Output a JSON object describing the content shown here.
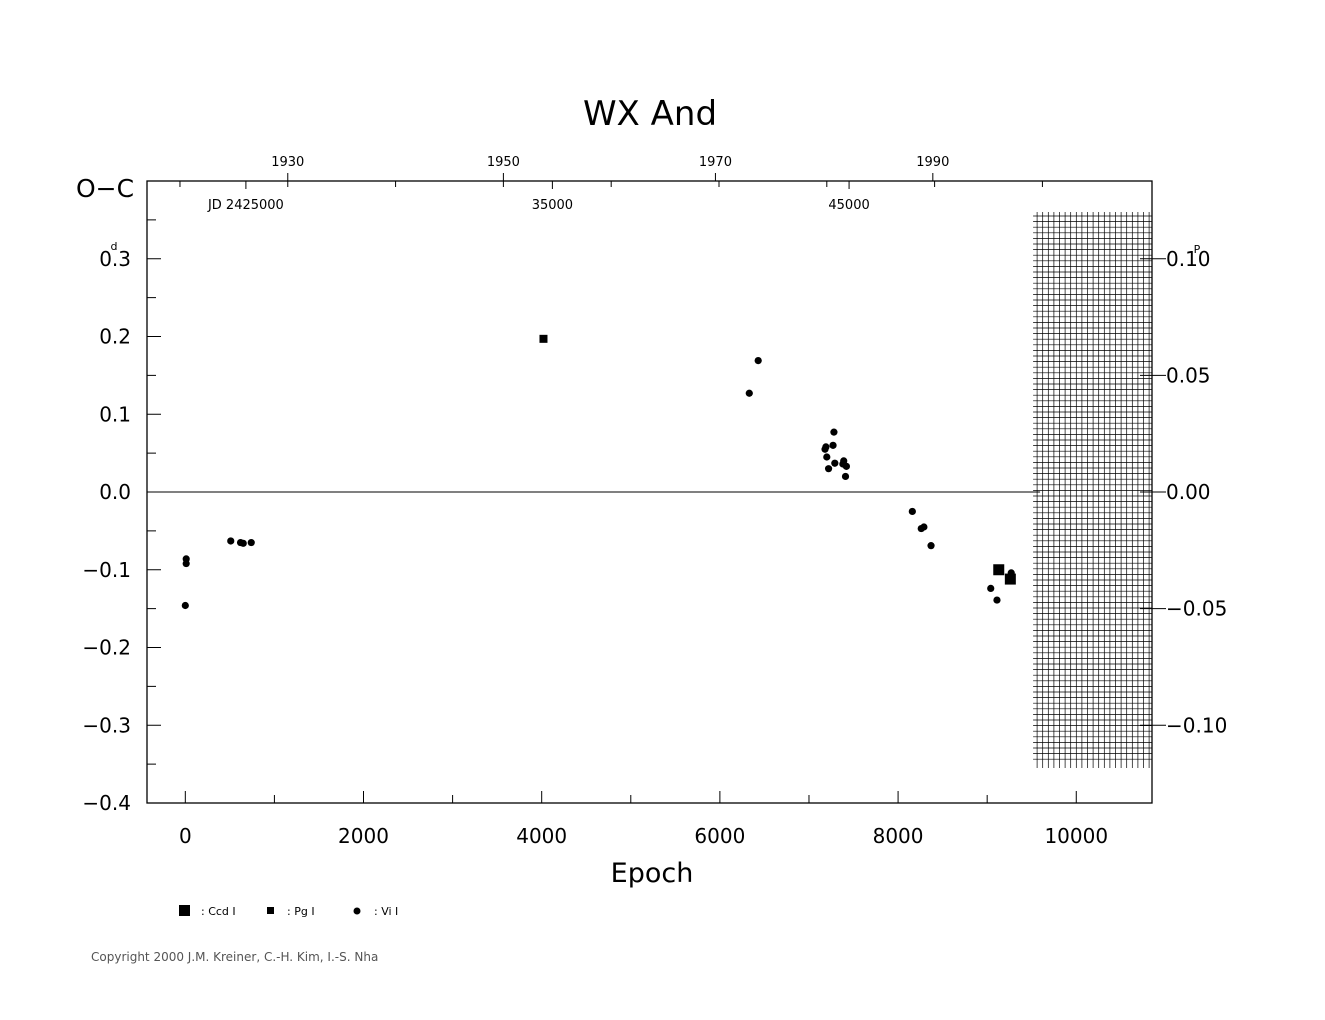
{
  "chart_data": {
    "type": "scatter",
    "title": "WX  And",
    "ylabel": "O−C",
    "ylabel_unit": "d",
    "xlabel": "Epoch",
    "right_axis_unit": "P",
    "xlim": [
      -430,
      10850
    ],
    "ylim": [
      -0.4,
      0.4
    ],
    "x_ticks": [
      0,
      2000,
      4000,
      6000,
      8000,
      10000
    ],
    "y_ticks": [
      {
        "value": 0.3,
        "label": "0.3"
      },
      {
        "value": 0.2,
        "label": "0.2"
      },
      {
        "value": 0.1,
        "label": "0.1"
      },
      {
        "value": 0.0,
        "label": "0.0"
      },
      {
        "value": -0.1,
        "label": "−0.1"
      },
      {
        "value": -0.2,
        "label": "−0.2"
      },
      {
        "value": -0.3,
        "label": "−0.3"
      },
      {
        "value": -0.4,
        "label": "−0.4"
      }
    ],
    "right_ticks": [
      {
        "value": 0.3,
        "label": "0.10"
      },
      {
        "value": 0.15,
        "label": "0.05"
      },
      {
        "value": 0.0,
        "label": "0.00"
      },
      {
        "value": -0.15,
        "label": "−0.05"
      },
      {
        "value": -0.3,
        "label": "−0.10"
      }
    ],
    "top_year_ticks": [
      {
        "epoch": 1150,
        "label": "1930"
      },
      {
        "epoch": 3570,
        "label": "1950"
      },
      {
        "epoch": 5950,
        "label": "1970"
      },
      {
        "epoch": 8390,
        "label": "1990"
      }
    ],
    "jd_labels": [
      {
        "epoch": 680,
        "label": "JD  2425000"
      },
      {
        "epoch": 4120,
        "label": "35000"
      },
      {
        "epoch": 7450,
        "label": "45000"
      }
    ],
    "shaded_epoch_range": [
      9650,
      10850
    ],
    "series": [
      {
        "name": ": Ccd  I",
        "marker": "square-large",
        "points": [
          [
            9130,
            -0.1
          ],
          [
            9260,
            -0.112
          ]
        ]
      },
      {
        "name": ": Pg  I",
        "marker": "square-small",
        "points": [
          [
            4020,
            0.197
          ]
        ]
      },
      {
        "name": ": Vi  I",
        "marker": "circle",
        "points": [
          [
            0,
            -0.146
          ],
          [
            10,
            -0.086
          ],
          [
            10,
            -0.092
          ],
          [
            510,
            -0.063
          ],
          [
            620,
            -0.065
          ],
          [
            650,
            -0.066
          ],
          [
            740,
            -0.065
          ],
          [
            6330,
            0.127
          ],
          [
            6430,
            0.169
          ],
          [
            7180,
            0.055
          ],
          [
            7190,
            0.058
          ],
          [
            7200,
            0.045
          ],
          [
            7220,
            0.03
          ],
          [
            7270,
            0.06
          ],
          [
            7280,
            0.077
          ],
          [
            7290,
            0.037
          ],
          [
            7380,
            0.036
          ],
          [
            7390,
            0.04
          ],
          [
            7410,
            0.02
          ],
          [
            7420,
            0.033
          ],
          [
            8160,
            -0.025
          ],
          [
            8260,
            -0.047
          ],
          [
            8290,
            -0.045
          ],
          [
            8370,
            -0.069
          ],
          [
            9040,
            -0.124
          ],
          [
            9110,
            -0.139
          ],
          [
            9270,
            -0.104
          ]
        ]
      }
    ]
  },
  "copyright": "Copyright 2000 J.M. Kreiner, C.-H. Kim, I.-S. Nha"
}
